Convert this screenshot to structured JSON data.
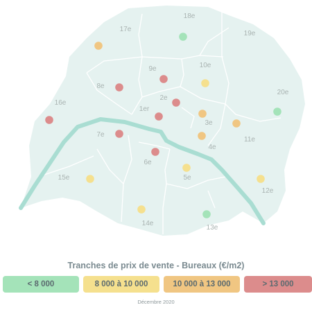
{
  "title": "Tranches de prix de vente - Bureaux (€/m2)",
  "date": "Décembre 2020",
  "colors": {
    "land": "#e5f2f0",
    "boundary": "#ffffff",
    "river": "#a9ddd2",
    "lt8000": "#a4e3b9",
    "8000_10000": "#f5e08e",
    "10000_13000": "#f0c682",
    "gt13000": "#dc8c8c"
  },
  "legend": [
    {
      "label": "< 8 000",
      "category": "lt8000"
    },
    {
      "label": "8 000 à 10 000",
      "category": "8000_10000"
    },
    {
      "label": "10 000 à 13 000",
      "category": "10000_13000"
    },
    {
      "label": "> 13 000",
      "category": "gt13000"
    }
  ],
  "arrondissements": [
    {
      "label": "1er",
      "category": "gt13000"
    },
    {
      "label": "2e",
      "category": "gt13000"
    },
    {
      "label": "3e",
      "category": "10000_13000"
    },
    {
      "label": "4e",
      "category": "10000_13000"
    },
    {
      "label": "5e",
      "category": "8000_10000"
    },
    {
      "label": "6e",
      "category": "gt13000"
    },
    {
      "label": "7e",
      "category": "gt13000"
    },
    {
      "label": "8e",
      "category": "gt13000"
    },
    {
      "label": "9e",
      "category": "gt13000"
    },
    {
      "label": "10e",
      "category": "8000_10000"
    },
    {
      "label": "11e",
      "category": "10000_13000"
    },
    {
      "label": "12e",
      "category": "8000_10000"
    },
    {
      "label": "13e",
      "category": "lt8000"
    },
    {
      "label": "14e",
      "category": "8000_10000"
    },
    {
      "label": "15e",
      "category": "8000_10000"
    },
    {
      "label": "16e",
      "category": "gt13000"
    },
    {
      "label": "17e",
      "category": "10000_13000"
    },
    {
      "label": "18e",
      "category": "lt8000"
    },
    {
      "label": "19e",
      "category": "lt8000"
    },
    {
      "label": "20e",
      "category": "lt8000"
    }
  ]
}
